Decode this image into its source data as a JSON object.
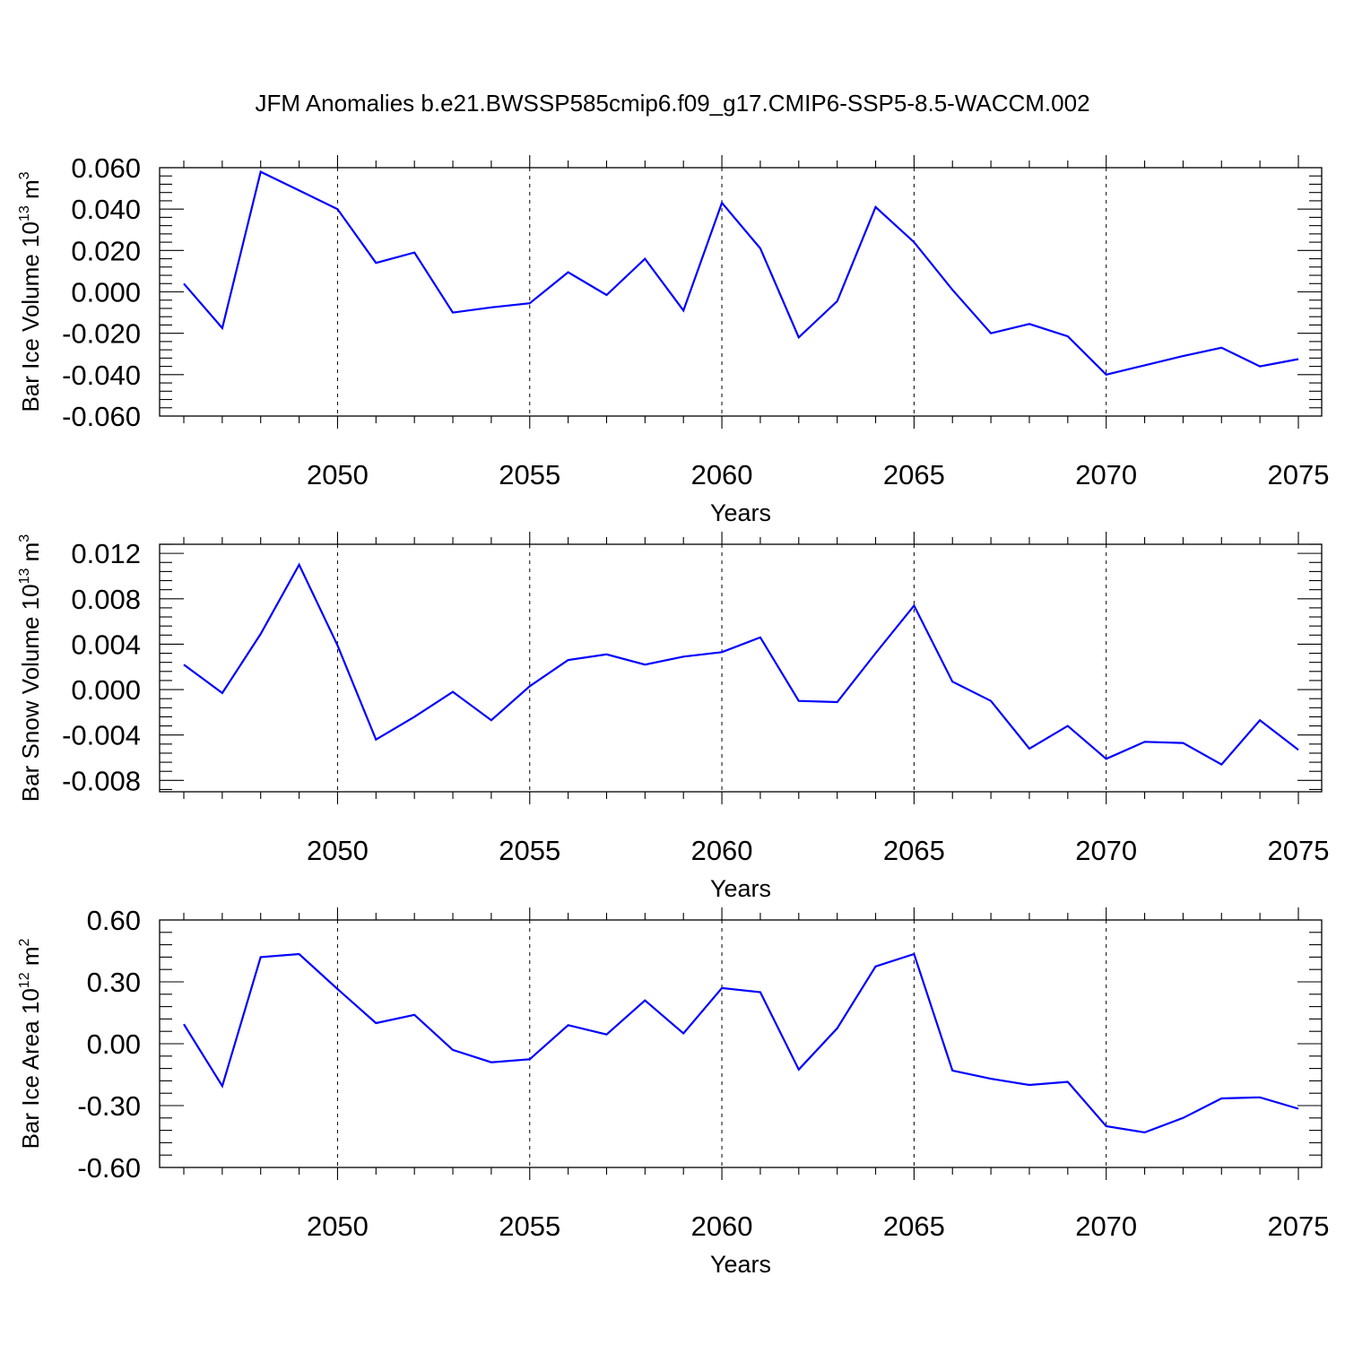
{
  "title": "JFM Anomalies b.e21.BWSSP585cmip6.f09_g17.CMIP6-SSP5-8.5-WACCM.002",
  "colors": {
    "series": "#0000ff",
    "axes": "#000000",
    "grid": "#000000"
  },
  "chart_data": [
    {
      "type": "line",
      "xlabel": "Years",
      "ylabel": "Bar Ice Volume 10",
      "ylabel_exp": "13",
      "ylabel_unit": " m",
      "ylabel_unit_exp": "3",
      "xlim": [
        2046,
        2075
      ],
      "ylim": [
        -0.06,
        0.06
      ],
      "yticks": [
        -0.06,
        -0.04,
        -0.02,
        0.0,
        0.02,
        0.04,
        0.06
      ],
      "ytick_labels": [
        "-0.060",
        "-0.040",
        "-0.020",
        "0.000",
        "0.020",
        "0.040",
        "0.060"
      ],
      "xticks": [
        2050,
        2055,
        2060,
        2065,
        2070,
        2075
      ],
      "xtick_labels": [
        "2050",
        "2055",
        "2060",
        "2065",
        "2070",
        "2075"
      ],
      "grid": "vertical dashed at major x ticks",
      "x": [
        2046,
        2047,
        2048,
        2049,
        2050,
        2051,
        2052,
        2053,
        2054,
        2055,
        2056,
        2057,
        2058,
        2059,
        2060,
        2061,
        2062,
        2063,
        2064,
        2065,
        2066,
        2067,
        2068,
        2069,
        2070,
        2071,
        2072,
        2073,
        2074,
        2075
      ],
      "values": [
        0.004,
        -0.0175,
        0.058,
        0.049,
        0.04,
        0.014,
        0.019,
        -0.01,
        -0.0075,
        -0.0055,
        0.0095,
        -0.0015,
        0.016,
        -0.009,
        0.043,
        0.021,
        -0.022,
        -0.0045,
        0.041,
        0.024,
        0.001,
        -0.02,
        -0.0155,
        -0.0215,
        -0.04,
        -0.0355,
        -0.031,
        -0.027,
        -0.036,
        -0.0325
      ]
    },
    {
      "type": "line",
      "xlabel": "Years",
      "ylabel": "Bar Snow Volume 10",
      "ylabel_exp": "13",
      "ylabel_unit": " m",
      "ylabel_unit_exp": "3",
      "xlim": [
        2046,
        2075
      ],
      "ylim": [
        -0.009,
        0.0128
      ],
      "yticks": [
        -0.008,
        -0.004,
        0.0,
        0.004,
        0.008,
        0.012
      ],
      "ytick_labels": [
        "-0.008",
        "-0.004",
        "0.000",
        "0.004",
        "0.008",
        "0.012"
      ],
      "xticks": [
        2050,
        2055,
        2060,
        2065,
        2070,
        2075
      ],
      "xtick_labels": [
        "2050",
        "2055",
        "2060",
        "2065",
        "2070",
        "2075"
      ],
      "grid": "vertical dashed at major x ticks",
      "x": [
        2046,
        2047,
        2048,
        2049,
        2050,
        2051,
        2052,
        2053,
        2054,
        2055,
        2056,
        2057,
        2058,
        2059,
        2060,
        2061,
        2062,
        2063,
        2064,
        2065,
        2066,
        2067,
        2068,
        2069,
        2070,
        2071,
        2072,
        2073,
        2074,
        2075
      ],
      "values": [
        0.0022,
        -0.0003,
        0.0049,
        0.011,
        0.0039,
        -0.0044,
        -0.0024,
        -0.0002,
        -0.0027,
        0.0003,
        0.0026,
        0.0031,
        0.0022,
        0.0029,
        0.0033,
        0.0046,
        -0.001,
        -0.0011,
        0.0032,
        0.0074,
        0.0007,
        -0.001,
        -0.0052,
        -0.0032,
        -0.0061,
        -0.0046,
        -0.0047,
        -0.0066,
        -0.0027,
        -0.0053
      ]
    },
    {
      "type": "line",
      "xlabel": "Years",
      "ylabel": "Bar Ice Area 10",
      "ylabel_exp": "12",
      "ylabel_unit": " m",
      "ylabel_unit_exp": "2",
      "xlim": [
        2046,
        2075
      ],
      "ylim": [
        -0.6,
        0.6
      ],
      "yticks": [
        -0.6,
        -0.3,
        0.0,
        0.3,
        0.6
      ],
      "ytick_labels": [
        "-0.60",
        "-0.30",
        "0.00",
        "0.30",
        "0.60"
      ],
      "xticks": [
        2050,
        2055,
        2060,
        2065,
        2070,
        2075
      ],
      "xtick_labels": [
        "2050",
        "2055",
        "2060",
        "2065",
        "2070",
        "2075"
      ],
      "grid": "vertical dashed at major x ticks",
      "x": [
        2046,
        2047,
        2048,
        2049,
        2050,
        2051,
        2052,
        2053,
        2054,
        2055,
        2056,
        2057,
        2058,
        2059,
        2060,
        2061,
        2062,
        2063,
        2064,
        2065,
        2066,
        2067,
        2068,
        2069,
        2070,
        2071,
        2072,
        2073,
        2074,
        2075
      ],
      "values": [
        0.095,
        -0.205,
        0.42,
        0.435,
        0.265,
        0.1,
        0.14,
        -0.03,
        -0.09,
        -0.075,
        0.09,
        0.045,
        0.21,
        0.05,
        0.27,
        0.25,
        -0.125,
        0.075,
        0.375,
        0.435,
        -0.13,
        -0.17,
        -0.2,
        -0.185,
        -0.4,
        -0.43,
        -0.36,
        -0.265,
        -0.26,
        -0.315
      ]
    }
  ]
}
